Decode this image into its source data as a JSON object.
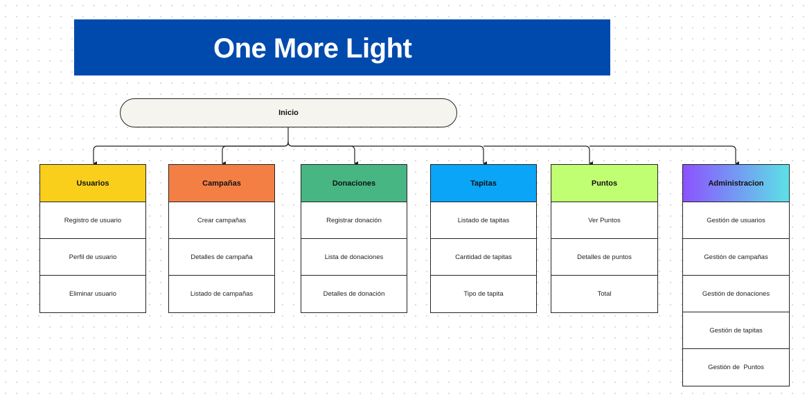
{
  "title": "One More Light",
  "root": {
    "label": "Inicio"
  },
  "columns": [
    {
      "label": "Usuarios",
      "color": "#f9cf1c",
      "items": [
        "Registro de usuario",
        "Perfil de usuario",
        "Eliminar usuario"
      ]
    },
    {
      "label": "Campañas",
      "color": "#f47f45",
      "items": [
        "Crear campañas",
        "Detalles de campaña",
        "Listado de campañas"
      ]
    },
    {
      "label": "Donaciones",
      "color": "#47b683",
      "items": [
        "Registrar donación",
        "Lista de donaciones",
        "Detalles de donación"
      ]
    },
    {
      "label": "Tapitas",
      "color": "#0aa5f7",
      "items": [
        "Listado de tapitas",
        "Cantidad de tapitas",
        "Tipo de tapita"
      ]
    },
    {
      "label": "Puntos",
      "color": "#c1ff72",
      "items": [
        "Ver Puntos",
        "Detalles de puntos",
        "Total"
      ]
    },
    {
      "label": "Administracion",
      "color": "#8c52ff",
      "color_end": "#5ce1e6",
      "items": [
        "Gestión de usuarios",
        "Gestión de campañas",
        "Gestión de donaciones",
        "Gestión de tapitas",
        "Gestión de  Puntos"
      ]
    }
  ]
}
